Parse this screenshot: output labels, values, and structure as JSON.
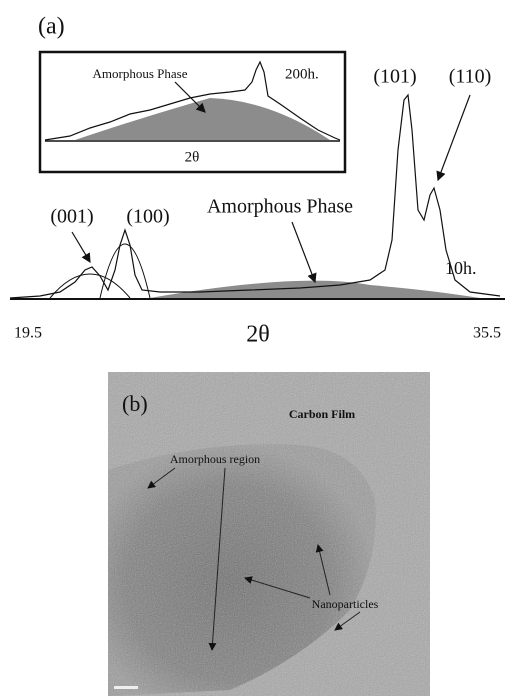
{
  "panel_a": {
    "label": "(a)",
    "inset": {
      "phase_label": "Amorphous Phase",
      "time": "200h.",
      "axis_label": "2θ"
    },
    "peaks": [
      "(001)",
      "(100)",
      "(101)",
      "(110)"
    ],
    "phase_label": "Amorphous Phase",
    "time": "10h.",
    "x_axis": {
      "min": "19.5",
      "max": "35.5",
      "label": "2θ"
    }
  },
  "panel_b": {
    "label": "(b)",
    "annotations": [
      "Carbon Film",
      "Amorphous region",
      "Nanoparticles"
    ]
  }
}
